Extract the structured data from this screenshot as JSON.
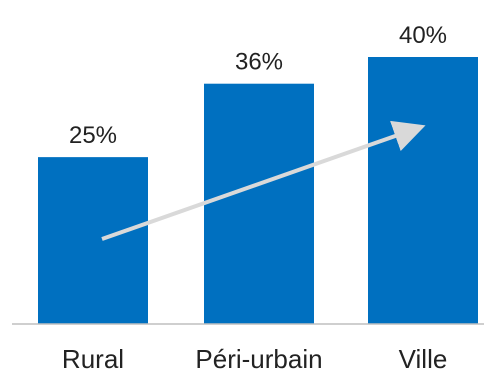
{
  "chart_data": {
    "type": "bar",
    "categories": [
      "Rural",
      "Péri-urbain",
      "Ville"
    ],
    "values": [
      25,
      36,
      40
    ],
    "value_labels": [
      "25%",
      "36%",
      "40%"
    ],
    "title": "",
    "xlabel": "",
    "ylabel": "",
    "ylim": [
      0,
      40
    ],
    "grid": false,
    "legend": "none",
    "annotations": [
      {
        "type": "arrow",
        "from_category": "Rural",
        "to_category": "Ville",
        "direction": "increasing"
      }
    ]
  },
  "colors": {
    "bar": "#0070C0",
    "arrow": "#D9D9D9",
    "axis": "#BFBFBF",
    "text": "#222222"
  }
}
